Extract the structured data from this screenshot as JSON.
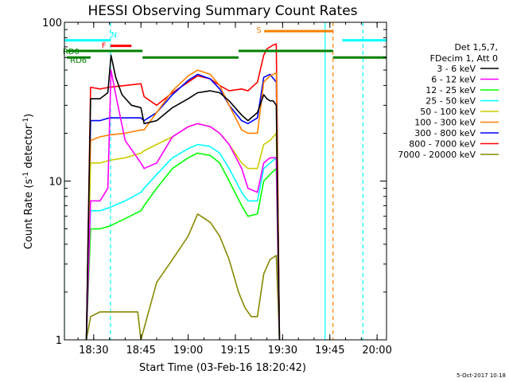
{
  "chart_data": {
    "type": "line",
    "title": "HESSI Observing Summary Count Rates",
    "xlabel": "Start Time (03-Feb-16 18:20:42)",
    "ylabel_main": "Count Rate (s",
    "ylabel_sup1": "-1",
    "ylabel_mid": " detector",
    "ylabel_sup2": "-1",
    "ylabel_end": ")",
    "y_scale": "log",
    "ylim": [
      1,
      100
    ],
    "xlim": [
      "18:20:42",
      "20:03:00"
    ],
    "x_ticks": [
      "18:30",
      "18:45",
      "19:00",
      "19:15",
      "19:30",
      "19:45",
      "20:00"
    ],
    "y_ticks": [
      "1",
      "10",
      "100"
    ],
    "legend_header": [
      "Det 1,5,7,",
      "FDecim 1, Att 0"
    ],
    "legend_placement": "right",
    "timestamp": "5-Oct-2017 10:18",
    "series": [
      {
        "name": "3 - 6 keV",
        "color": "#000000",
        "x": [
          "18:27:40",
          "18:29",
          "18:32",
          "18:34:30",
          "18:35:30",
          "18:37",
          "18:39",
          "18:42",
          "18:45",
          "18:46",
          "18:50",
          "18:55",
          "19:00",
          "19:03",
          "19:07",
          "19:10",
          "19:13",
          "19:17",
          "19:19",
          "19:22",
          "19:24",
          "19:25",
          "19:26",
          "19:27",
          "19:28",
          "19:29"
        ],
        "values": [
          1,
          33,
          33,
          36,
          62,
          45,
          35,
          30,
          29,
          23,
          24,
          29,
          33,
          36,
          37,
          36,
          32,
          26,
          24,
          27,
          35,
          33,
          32,
          32,
          30,
          1
        ]
      },
      {
        "name": "6 - 12 keV",
        "color": "#ff00ff",
        "x": [
          "18:27:40",
          "18:29",
          "18:32",
          "18:34:30",
          "18:35:30",
          "18:37",
          "18:40",
          "18:45",
          "18:46",
          "18:50",
          "18:55",
          "19:00",
          "19:03",
          "19:07",
          "19:10",
          "19:13",
          "19:17",
          "19:19",
          "19:22",
          "19:24",
          "19:26",
          "19:28",
          "19:29"
        ],
        "values": [
          1,
          7.5,
          7.5,
          9,
          50,
          35,
          18,
          13,
          12,
          13,
          19,
          22,
          23,
          22,
          20,
          17,
          12,
          9,
          8.5,
          13,
          14,
          14,
          1
        ]
      },
      {
        "name": "12 - 25 keV",
        "color": "#00ff00",
        "x": [
          "18:27:40",
          "18:29",
          "18:32",
          "18:35",
          "18:40",
          "18:45",
          "18:46",
          "18:50",
          "18:55",
          "19:00",
          "19:03",
          "19:07",
          "19:10",
          "19:13",
          "19:17",
          "19:19",
          "19:22",
          "19:24",
          "19:26",
          "19:28",
          "19:29"
        ],
        "values": [
          1,
          5,
          5,
          5.2,
          5.8,
          6.5,
          7,
          9,
          12,
          14,
          15,
          14.5,
          13,
          10,
          7,
          6,
          6.2,
          10,
          11,
          12,
          1
        ]
      },
      {
        "name": "25 - 50 keV",
        "color": "#00ffff",
        "x": [
          "18:27:40",
          "18:29",
          "18:32",
          "18:35",
          "18:40",
          "18:45",
          "18:46",
          "18:50",
          "18:55",
          "19:00",
          "19:03",
          "19:07",
          "19:10",
          "19:13",
          "19:17",
          "19:19",
          "19:22",
          "19:24",
          "19:26",
          "19:28",
          "19:29"
        ],
        "values": [
          1,
          6.5,
          6.5,
          6.8,
          7.5,
          8.5,
          9,
          11,
          14,
          16,
          17,
          16.5,
          15,
          12,
          8.5,
          7.5,
          7.5,
          12,
          13,
          14,
          1
        ]
      },
      {
        "name": "50 - 100 keV",
        "color": "#cccc00",
        "x": [
          "18:27:40",
          "18:29",
          "18:32",
          "18:35",
          "18:40",
          "18:45",
          "18:46",
          "18:50",
          "18:55",
          "19:00",
          "19:03",
          "19:07",
          "19:10",
          "19:13",
          "19:17",
          "19:19",
          "19:22",
          "19:24",
          "19:26",
          "19:28",
          "19:29"
        ],
        "values": [
          1,
          13,
          13,
          13.5,
          14,
          15,
          15.5,
          17,
          19,
          22,
          23,
          22,
          20,
          17,
          13,
          12,
          12,
          17,
          18,
          20,
          1
        ]
      },
      {
        "name": "100 - 300 keV",
        "color": "#ff8000",
        "x": [
          "18:27:40",
          "18:29",
          "18:32",
          "18:35",
          "18:40",
          "18:45",
          "18:46",
          "18:50",
          "18:55",
          "19:00",
          "19:03",
          "19:07",
          "19:10",
          "19:13",
          "19:17",
          "19:19",
          "19:22",
          "19:24",
          "19:26",
          "19:28",
          "19:29"
        ],
        "values": [
          1,
          18,
          19,
          19.5,
          20,
          21,
          21,
          27,
          37,
          46,
          50,
          47,
          40,
          30,
          21,
          20,
          20,
          42,
          46,
          48,
          1
        ]
      },
      {
        "name": "300 - 800 keV",
        "color": "#0000ff",
        "x": [
          "18:27:40",
          "18:29",
          "18:32",
          "18:35",
          "18:40",
          "18:45",
          "18:46",
          "18:50",
          "18:55",
          "19:00",
          "19:03",
          "19:07",
          "19:10",
          "19:13",
          "19:17",
          "19:19",
          "19:22",
          "19:24",
          "19:26",
          "19:28",
          "19:29"
        ],
        "values": [
          1,
          24,
          24,
          25,
          25,
          25,
          24,
          27,
          35,
          43,
          47,
          44,
          38,
          30,
          24,
          23,
          25,
          45,
          47,
          42,
          1
        ]
      },
      {
        "name": "800 - 7000 keV",
        "color": "#ff0000",
        "x": [
          "18:27:40",
          "18:29",
          "18:32",
          "18:35",
          "18:40",
          "18:45",
          "18:46",
          "18:50",
          "18:55",
          "19:00",
          "19:03",
          "19:07",
          "19:10",
          "19:13",
          "19:17",
          "19:19",
          "19:22",
          "19:24",
          "19:25",
          "19:27",
          "19:28",
          "19:29"
        ],
        "values": [
          1,
          39,
          38,
          39,
          40,
          41,
          34,
          30,
          36,
          42,
          46,
          44,
          40,
          37,
          38,
          37,
          42,
          62,
          68,
          72,
          73,
          1
        ]
      },
      {
        "name": "7000 - 20000 keV",
        "color": "#888800",
        "x": [
          "18:27:40",
          "18:29",
          "18:32",
          "18:35",
          "18:40",
          "18:44",
          "18:45",
          "18:50",
          "18:55",
          "19:00",
          "19:03",
          "19:07",
          "19:10",
          "19:13",
          "19:16",
          "19:18",
          "19:20",
          "19:22",
          "19:24",
          "19:26",
          "19:28",
          "19:29"
        ],
        "values": [
          1,
          1.4,
          1.5,
          1.5,
          1.5,
          1.5,
          1,
          2.3,
          3.2,
          4.5,
          6.2,
          5.5,
          4.5,
          3.2,
          2,
          1.6,
          1.4,
          1.4,
          2.6,
          3.2,
          3.4,
          1
        ]
      }
    ],
    "flags": [
      {
        "label": "N",
        "color": "#00ffff",
        "start": "18:20:42",
        "end": "18:35:20",
        "level": 77,
        "label_at": "18:35:30",
        "label_level": 84
      },
      {
        "label": "",
        "color": "#00ffff",
        "start": "19:49:00",
        "end": "20:03:00",
        "level": 77
      },
      {
        "label": "F",
        "color": "#ff0000",
        "start": "18:35:20",
        "end": "18:42:00",
        "level": 71,
        "label_at": "18:32:30",
        "label_level": 72
      },
      {
        "label": "S",
        "color": "#ff8000",
        "start": "19:24:10",
        "end": "19:46:00",
        "level": 88,
        "label_at": "19:21:40",
        "label_level": 90
      },
      {
        "label": "RD0",
        "color": "#008000",
        "start": "18:21:30",
        "end": "18:45:30",
        "level": 66,
        "label_at": "18:20:10",
        "label_level": 66
      },
      {
        "label": "",
        "color": "#008000",
        "start": "19:16:00",
        "end": "19:46:00",
        "level": 66
      },
      {
        "label": "RD6",
        "color": "#008000",
        "start": "18:21:30",
        "end": "18:29:00",
        "level": 60,
        "label_at": "18:22:30",
        "label_level": 58
      },
      {
        "label": "",
        "color": "#008000",
        "start": "18:45:30",
        "end": "19:16:00",
        "level": 60
      },
      {
        "label": "",
        "color": "#008000",
        "start": "19:46:00",
        "end": "20:03:00",
        "level": 60
      }
    ],
    "markers": [
      {
        "time": "18:20:42",
        "color": "#00ffff",
        "style": "solid"
      },
      {
        "time": "18:35:20",
        "color": "#00ffff",
        "style": "dashed"
      },
      {
        "time": "19:43:30",
        "color": "#00ffff",
        "style": "solid"
      },
      {
        "time": "19:46:00",
        "color": "#ff8000",
        "style": "dashed"
      },
      {
        "time": "19:55:30",
        "color": "#00ffff",
        "style": "dashed"
      }
    ]
  }
}
